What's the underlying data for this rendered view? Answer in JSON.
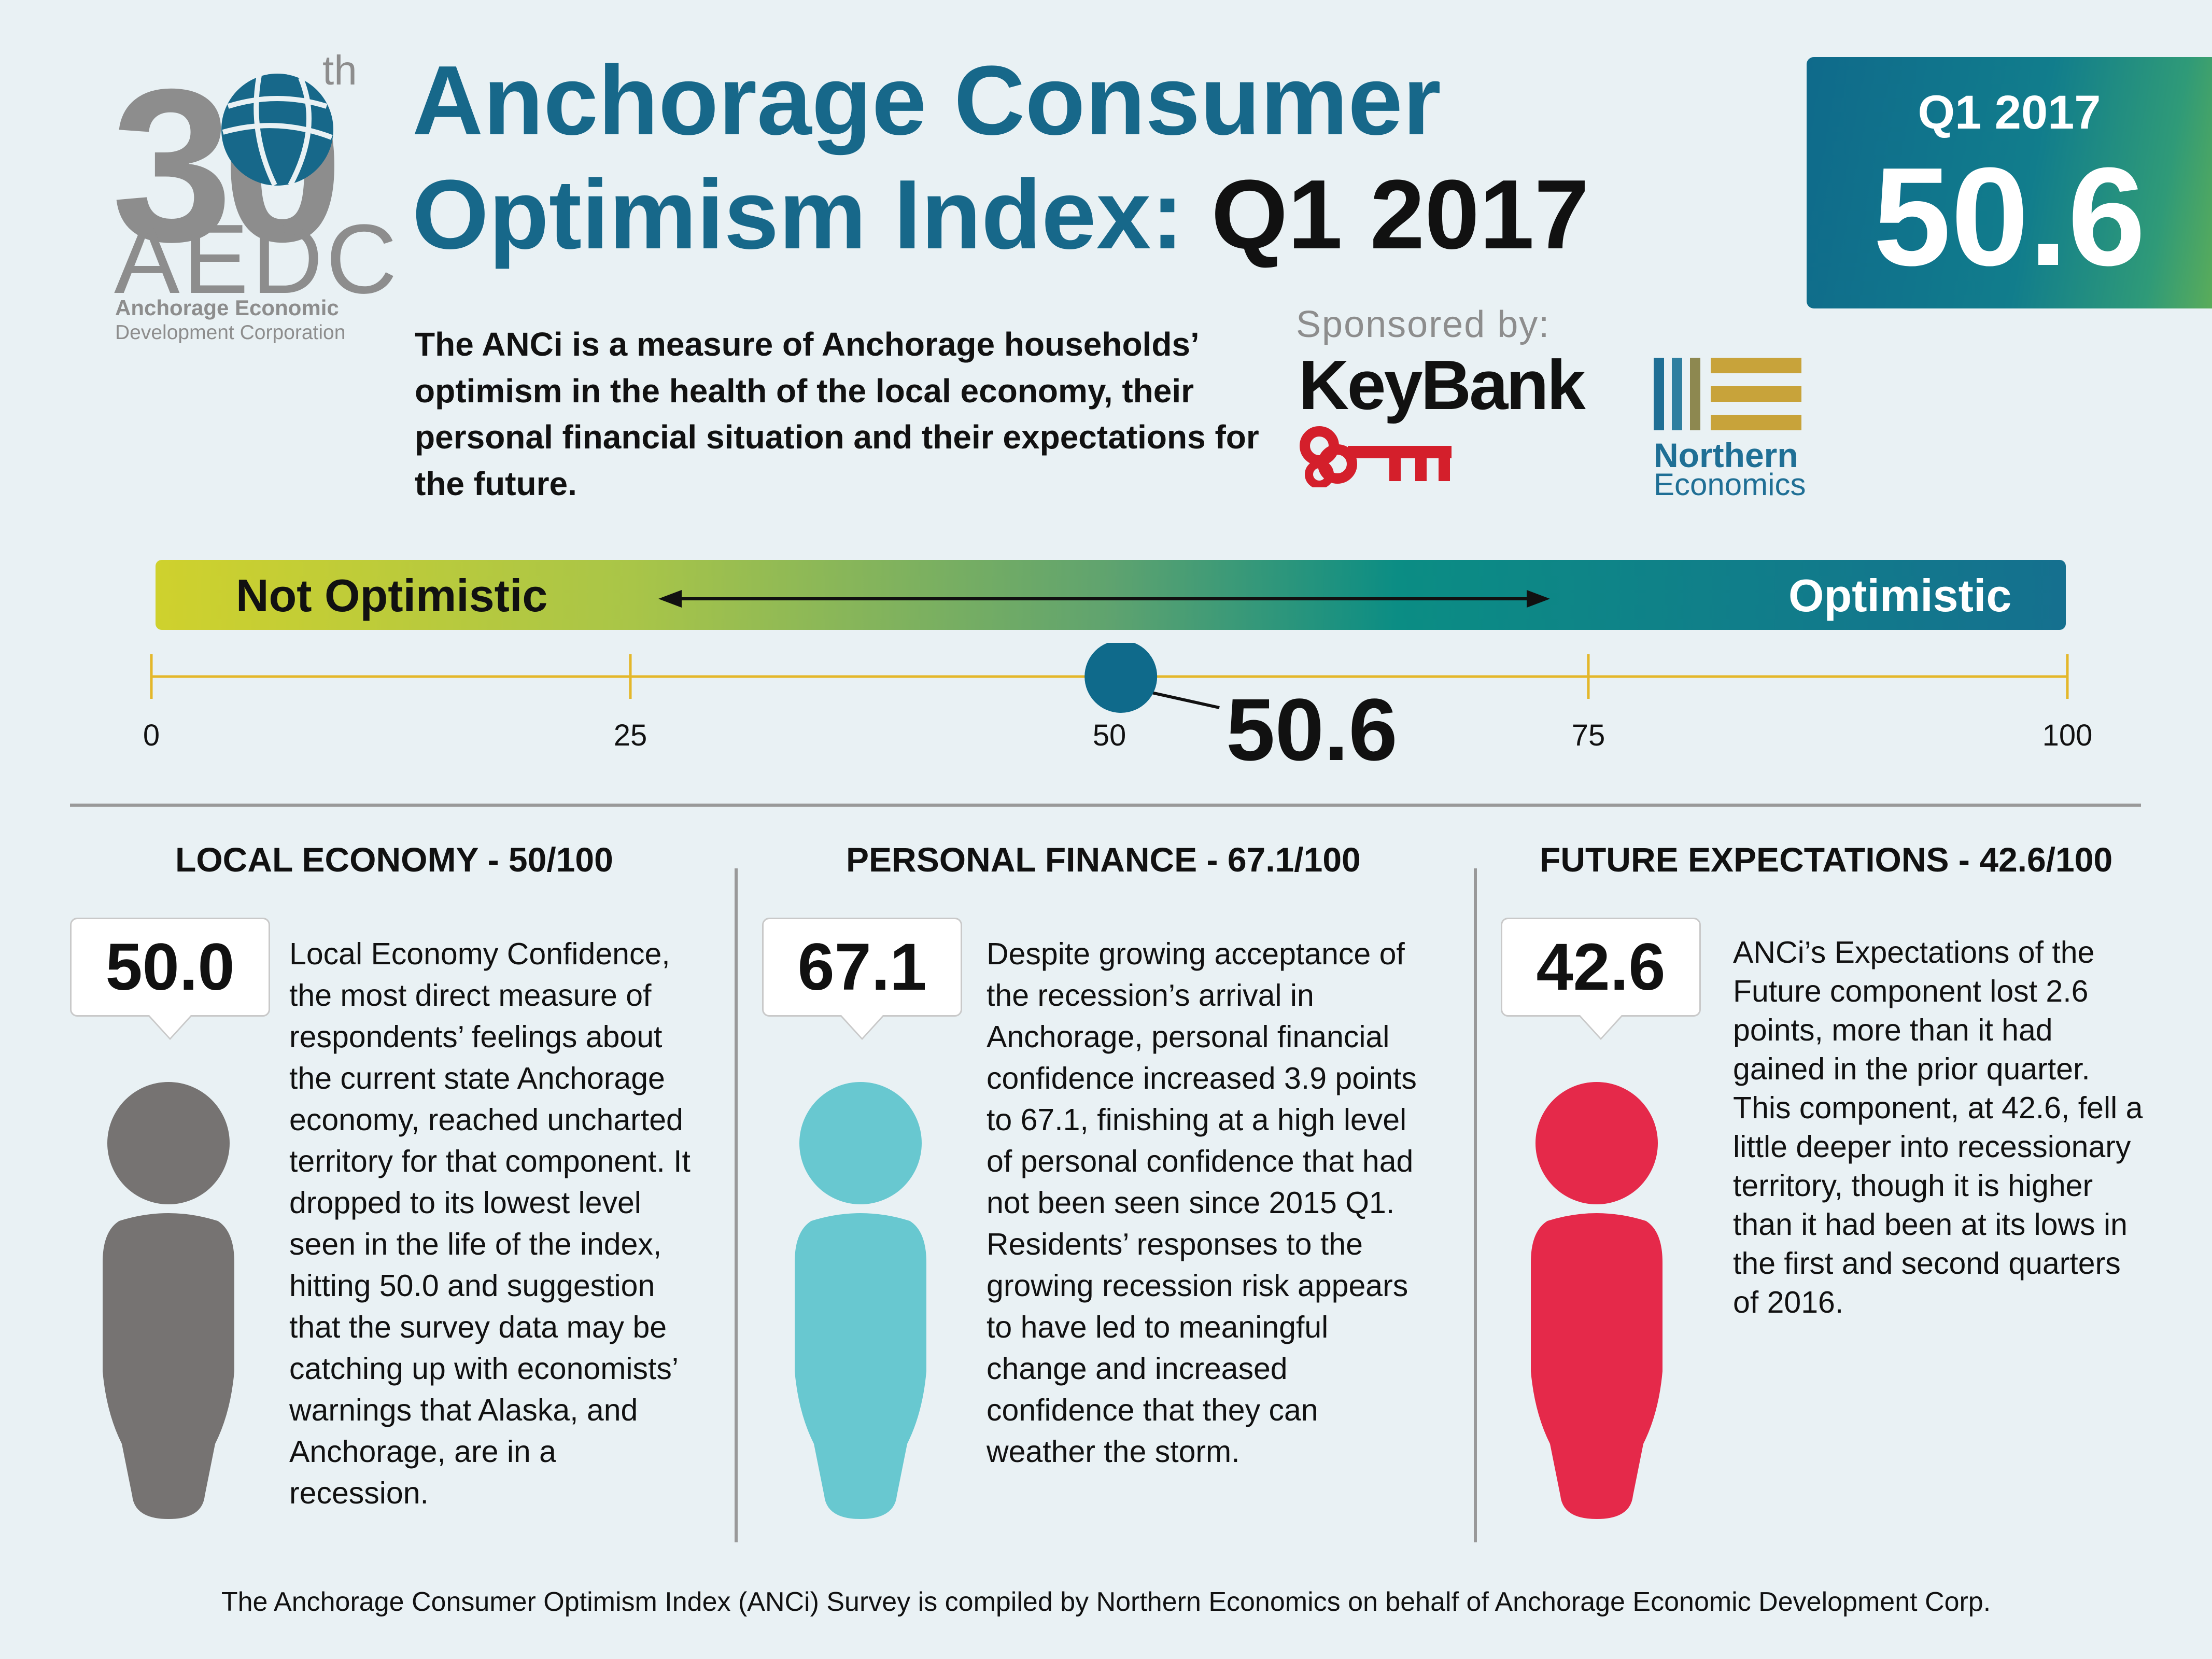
{
  "logo": {
    "digits": "30",
    "suffix": "th",
    "acronym": "AEDC",
    "org_line1": "Anchorage Economic",
    "org_line2": "Development Corporation"
  },
  "header": {
    "title_line1": "Anchorage Consumer",
    "title_line2_prefix": "Optimism Index:",
    "title_line2_quarter": "Q1 2017"
  },
  "score_box": {
    "quarter": "Q1 2017",
    "value": "50.6"
  },
  "intro": "The ANCi is a measure of Anchorage households’ optimism in the health of the local economy, their personal financial situation and their expectations for the future.",
  "sponsors": {
    "label": "Sponsored by:",
    "keybank": "KeyBank",
    "northern_line1": "Northern",
    "northern_line2": "Economics"
  },
  "scale": {
    "left_label": "Not Optimistic",
    "right_label": "Optimistic",
    "ticks": [
      "0",
      "25",
      "50",
      "75",
      "100"
    ],
    "value": 50.6,
    "value_label": "50.6",
    "colors": {
      "start": "#cfd12d",
      "end": "#15708f",
      "marker": "#0f6a8b",
      "axis": "#e4b72a"
    }
  },
  "columns": [
    {
      "heading": "LOCAL ECONOMY - 50/100",
      "value": "50.0",
      "color": "#767372",
      "text": "Local Economy Confidence, the most direct measure of respondents’ feelings about the current state Anchorage economy, reached uncharted territory for that component. It dropped to its lowest level seen in the life of the index, hitting 50.0 and suggestion that the survey data may be catching up with economists’ warnings that Alaska, and Anchorage, are in a recession."
    },
    {
      "heading": "PERSONAL FINANCE - 67.1/100",
      "value": "67.1",
      "color": "#68c8d0",
      "text": "Despite growing acceptance of the recession’s arrival in Anchorage, personal financial confidence increased 3.9 points to 67.1, finishing at a high level of personal confidence that had not been seen since 2015 Q1. Residents’ responses to the growing recession risk appears to have led to meaningful change and increased confidence that they can weather the storm."
    },
    {
      "heading": "FUTURE EXPECTATIONS - 42.6/100",
      "value": "42.6",
      "color": "#e5294a",
      "text": "ANCi’s Expectations of the Future component lost 2.6 points, more than it had gained in the prior quarter. This component, at 42.6, fell a little deeper into recessionary territory, though it is higher than it had been at its lows in the first and second quarters of 2016."
    }
  ],
  "footer": "The Anchorage Consumer Optimism Index (ANCi) Survey is compiled by Northern Economics on behalf of Anchorage Economic Development Corp."
}
